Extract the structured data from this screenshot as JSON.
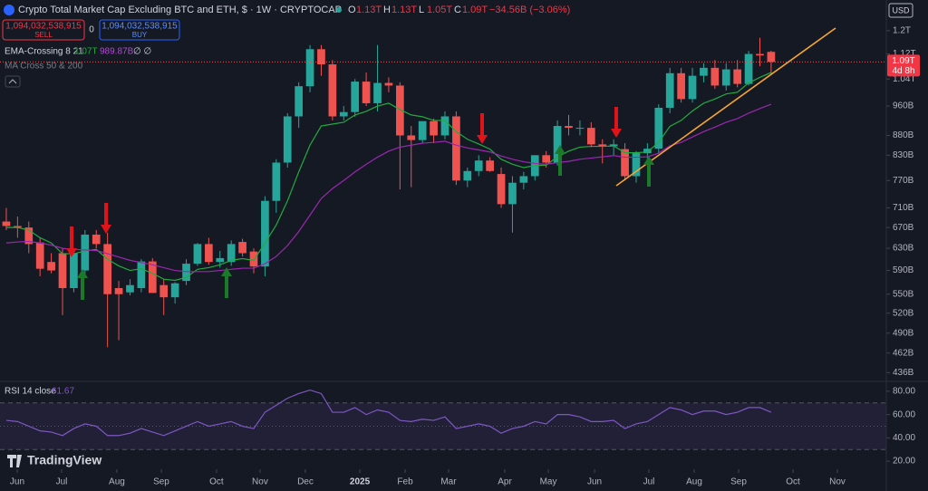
{
  "header": {
    "title": "Crypto Total Market Cap Excluding BTC and ETH, $ · 1W · CRYPTOCAP",
    "ohlc": [
      {
        "key": "O",
        "value": "1.13T"
      },
      {
        "key": "H",
        "value": "1.13T"
      },
      {
        "key": "L",
        "value": "1.05T"
      },
      {
        "key": "C",
        "value": "1.09T"
      }
    ],
    "change": "−34.56B (−3.06%)",
    "sell": {
      "price": "1,094,032,538,915",
      "label": "SELL"
    },
    "spread": "0",
    "buy": {
      "price": "1,094,032,538,915",
      "label": "BUY"
    },
    "currency": "USD",
    "indicators": [
      {
        "name": "EMA-Crossing 8 21",
        "values": [
          "1.07T",
          "989.87B",
          "∅ ∅"
        ]
      },
      {
        "name": "MA Cross 50 & 200"
      }
    ],
    "price_tag": {
      "price": "1.09T",
      "countdown": "4d 8h"
    },
    "logo": "TradingView"
  },
  "chart_data": [
    {
      "type": "candlestick",
      "log": true,
      "grid": false,
      "up_color": "#26a69a",
      "down_color": "#ef5350",
      "x": [
        0,
        1,
        2,
        3,
        4,
        5,
        6,
        7,
        8,
        9,
        10,
        11,
        12,
        13,
        14,
        15,
        16,
        17,
        18,
        19,
        20,
        21,
        22,
        23,
        24,
        25,
        26,
        27,
        28,
        29,
        30,
        31,
        32,
        33,
        34,
        35,
        36,
        37,
        38,
        39,
        40,
        41,
        42,
        43,
        44,
        45,
        46,
        47,
        48,
        49,
        50,
        51,
        52,
        53,
        54,
        55,
        56,
        57,
        58,
        59,
        60,
        61,
        62,
        63,
        64,
        65,
        66,
        67,
        68
      ],
      "open": [
        682,
        673,
        670,
        641,
        605,
        621,
        560,
        590,
        656,
        638,
        560,
        553,
        560,
        606,
        565,
        545,
        572,
        602,
        638,
        605,
        605,
        642,
        624,
        597,
        725,
        812,
        931,
        1018,
        1136,
        1086,
        931,
        943,
        1032,
        968,
        1028,
        1020,
        880,
        868,
        918,
        880,
        931,
        770,
        792,
        817,
        785,
        718,
        765,
        780,
        830,
        812,
        905,
        900,
        900,
        857,
        852,
        845,
        780,
        835,
        846,
        955,
        1058,
        980,
        1050,
        1075,
        1020,
        1070,
        1025,
        1120,
        1127
      ],
      "high": [
        710,
        692,
        682,
        651,
        621,
        630,
        630,
        665,
        665,
        660,
        572,
        575,
        610,
        612,
        575,
        570,
        610,
        640,
        650,
        625,
        645,
        648,
        630,
        735,
        820,
        940,
        1030,
        1150,
        1150,
        1100,
        960,
        1040,
        1060,
        1150,
        1045,
        1030,
        905,
        915,
        925,
        945,
        945,
        800,
        830,
        825,
        800,
        780,
        790,
        830,
        840,
        920,
        935,
        920,
        915,
        870,
        870,
        860,
        840,
        860,
        965,
        1075,
        1075,
        1075,
        1090,
        1100,
        1090,
        1100,
        1130,
        1175,
        1131
      ],
      "low": [
        665,
        650,
        621,
        580,
        585,
        517,
        553,
        583,
        630,
        470,
        480,
        548,
        553,
        552,
        517,
        535,
        565,
        598,
        600,
        595,
        598,
        615,
        585,
        580,
        700,
        800,
        900,
        1000,
        1050,
        920,
        920,
        930,
        960,
        945,
        1000,
        750,
        755,
        860,
        860,
        870,
        760,
        755,
        780,
        790,
        710,
        660,
        750,
        770,
        800,
        805,
        880,
        880,
        850,
        810,
        830,
        770,
        765,
        820,
        835,
        940,
        970,
        970,
        1030,
        1010,
        1005,
        1015,
        1020,
        1080,
        1052
      ],
      "close": [
        673,
        670,
        638,
        593,
        590,
        560,
        621,
        656,
        638,
        550,
        550,
        565,
        606,
        552,
        545,
        568,
        602,
        638,
        605,
        612,
        638,
        621,
        597,
        725,
        812,
        931,
        1018,
        1136,
        1086,
        931,
        943,
        1032,
        968,
        1028,
        1020,
        880,
        868,
        918,
        880,
        931,
        770,
        792,
        817,
        792,
        718,
        765,
        780,
        830,
        812,
        905,
        900,
        900,
        857,
        852,
        857,
        780,
        835,
        846,
        955,
        1058,
        980,
        1050,
        1075,
        1020,
        1070,
        1025,
        1120,
        1115,
        1094
      ],
      "overlays": [
        {
          "color": "#22ab3f",
          "values": [
            670,
            670,
            665,
            650,
            640,
            620,
            620,
            625,
            628,
            610,
            598,
            590,
            593,
            585,
            575,
            573,
            578,
            592,
            595,
            600,
            608,
            611,
            608,
            640,
            675,
            725,
            790,
            855,
            905,
            910,
            915,
            935,
            945,
            960,
            968,
            950,
            935,
            930,
            920,
            920,
            890,
            870,
            858,
            845,
            820,
            808,
            800,
            805,
            806,
            826,
            840,
            850,
            852,
            852,
            853,
            836,
            836,
            838,
            862,
            904,
            920,
            946,
            968,
            980,
            995,
            1000,
            1028,
            1045,
            1060
          ]
        },
        {
          "color": "#9c27b0",
          "values": [
            640,
            642,
            643,
            640,
            636,
            630,
            628,
            627,
            626,
            620,
            614,
            608,
            604,
            600,
            595,
            590,
            588,
            588,
            588,
            590,
            592,
            594,
            594,
            602,
            615,
            635,
            662,
            695,
            730,
            752,
            770,
            790,
            808,
            825,
            840,
            850,
            855,
            860,
            862,
            865,
            855,
            848,
            843,
            838,
            828,
            820,
            814,
            810,
            808,
            812,
            815,
            820,
            823,
            826,
            829,
            825,
            825,
            826,
            835,
            853,
            862,
            876,
            890,
            902,
            915,
            925,
            940,
            953,
            965
          ]
        }
      ],
      "xlim": [
        -0.56,
        78.24
      ],
      "xticks": [
        {
          "value": 0.97,
          "label": "Jun"
        },
        {
          "value": 4.92,
          "label": "Jul"
        },
        {
          "value": 9.83,
          "label": "Aug"
        },
        {
          "value": 13.78,
          "label": "Sep"
        },
        {
          "value": 18.69,
          "label": "Oct"
        },
        {
          "value": 22.56,
          "label": "Nov"
        },
        {
          "value": 26.59,
          "label": "Dec"
        },
        {
          "value": 31.43,
          "label": "2025"
        },
        {
          "value": 35.46,
          "label": "Feb"
        },
        {
          "value": 39.32,
          "label": "Mar"
        },
        {
          "value": 44.32,
          "label": "Apr"
        },
        {
          "value": 48.19,
          "label": "May"
        },
        {
          "value": 52.3,
          "label": "Jun"
        },
        {
          "value": 57.13,
          "label": "Jul"
        },
        {
          "value": 61.16,
          "label": "Aug"
        },
        {
          "value": 65.11,
          "label": "Sep"
        },
        {
          "value": 69.94,
          "label": "Oct"
        },
        {
          "value": 73.89,
          "label": "Nov"
        }
      ],
      "ylim": [
        426,
        1314
      ],
      "yticks": [
        {
          "value": 1200,
          "label": "1.2T"
        },
        {
          "value": 1120,
          "label": "1.12T"
        },
        {
          "value": 1040,
          "label": "1.04T"
        },
        {
          "value": 960,
          "label": "960B"
        },
        {
          "value": 880,
          "label": "880B"
        },
        {
          "value": 830,
          "label": "830B"
        },
        {
          "value": 770,
          "label": "770B"
        },
        {
          "value": 710,
          "label": "710B"
        },
        {
          "value": 670,
          "label": "670B"
        },
        {
          "value": 630,
          "label": "630B"
        },
        {
          "value": 590,
          "label": "590B"
        },
        {
          "value": 550,
          "label": "550B"
        },
        {
          "value": 520,
          "label": "520B"
        },
        {
          "value": 490,
          "label": "490B"
        },
        {
          "value": 462,
          "label": "462B"
        },
        {
          "value": 436,
          "label": "436B"
        }
      ]
    },
    {
      "type": "line",
      "title": "RSI 14 close",
      "last_label": "61.67",
      "color": "#7e57c2",
      "values": [
        55,
        54,
        50,
        46,
        45,
        42,
        48,
        52,
        50,
        42,
        42,
        44,
        48,
        45,
        42,
        46,
        50,
        54,
        50,
        52,
        54,
        50,
        48,
        62,
        68,
        74,
        78,
        81,
        78,
        62,
        62,
        66,
        60,
        64,
        62,
        55,
        54,
        56,
        55,
        58,
        48,
        50,
        52,
        50,
        44,
        48,
        50,
        54,
        52,
        60,
        60,
        58,
        54,
        54,
        55,
        48,
        52,
        54,
        60,
        66,
        64,
        60,
        63,
        63,
        60,
        62,
        66,
        66,
        62
      ],
      "levels": [
        70,
        50,
        30
      ],
      "ylim": [
        13.08,
        88.46
      ],
      "yticks": [
        {
          "value": 80,
          "label": "80.00"
        },
        {
          "value": 60,
          "label": "60.00"
        },
        {
          "value": 40,
          "label": "40.00"
        },
        {
          "value": 20,
          "label": "20.00"
        }
      ]
    }
  ]
}
